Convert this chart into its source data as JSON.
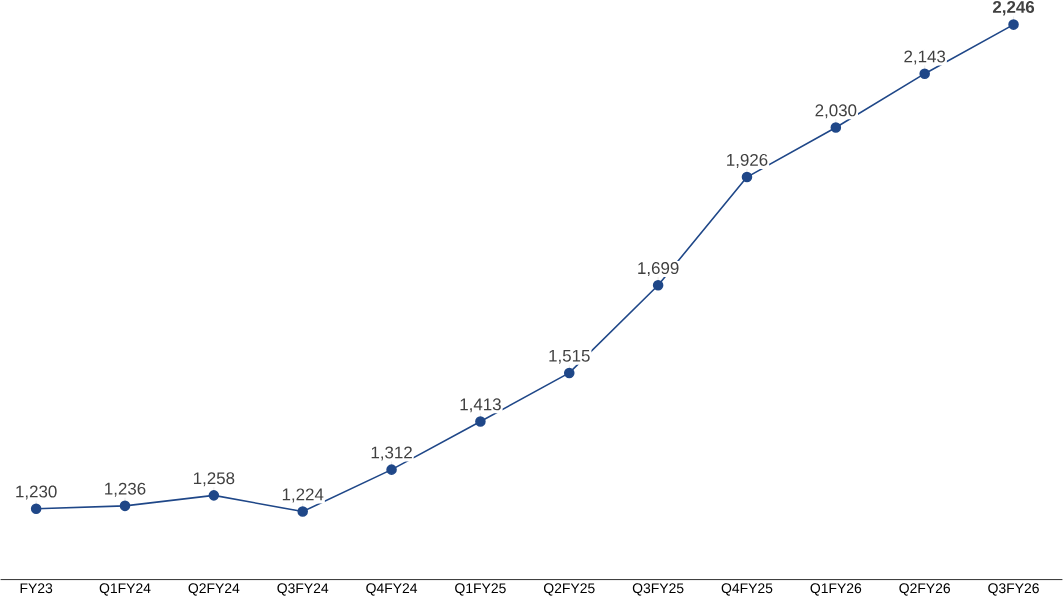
{
  "chart_data": {
    "type": "line",
    "categories": [
      "FY23",
      "Q1FY24",
      "Q2FY24",
      "Q3FY24",
      "Q4FY24",
      "Q1FY25",
      "Q2FY25",
      "Q3FY25",
      "Q4FY25",
      "Q1FY26",
      "Q2FY26",
      "Q3FY26"
    ],
    "series": [
      {
        "color": "#1f4788",
        "values": [
          1230,
          1236,
          1258,
          1224,
          1312,
          1413,
          1515,
          1699,
          1926,
          2030,
          2143,
          2246
        ],
        "value_labels": [
          "1,230",
          "1,236",
          "1,258",
          "1,224",
          "1,312",
          "1,413",
          "1,515",
          "1,699",
          "1,926",
          "2,030",
          "2,143",
          "2,246"
        ]
      }
    ],
    "marker": "circle",
    "line_style": "solid",
    "tick_labels": "x"
  }
}
